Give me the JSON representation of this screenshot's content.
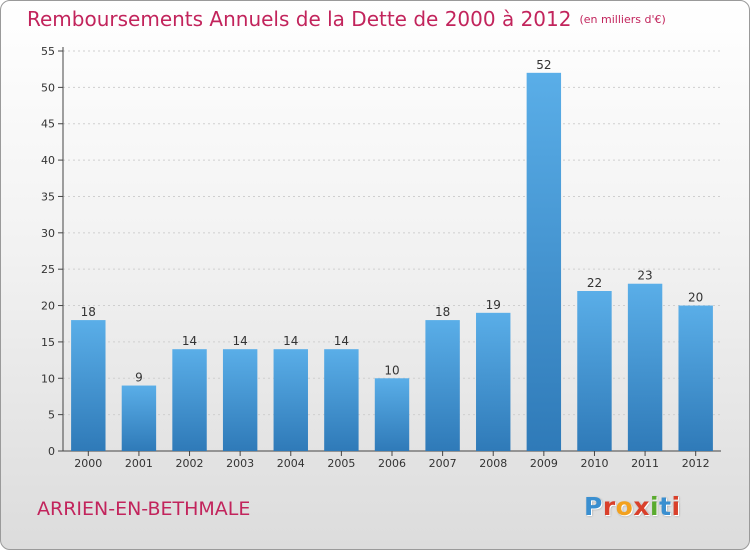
{
  "title": "Remboursements Annuels de la Dette de 2000 à 2012",
  "subtitle": "(en milliers d'€)",
  "commune": "ARRIEN-EN-BETHMALE",
  "logo": {
    "letters": [
      "P",
      "r",
      "o",
      "x",
      "i",
      "t",
      "i"
    ],
    "colors": [
      "#3a8fd0",
      "#d9402b",
      "#f2a11f",
      "#d9402b",
      "#5aab2e",
      "#3a8fd0",
      "#d9402b"
    ]
  },
  "colors": {
    "bar_top": "#5aaee8",
    "bar_bottom": "#2f7ab8",
    "title": "#c2245c",
    "axis": "#444444",
    "grid": "#cfcfcf"
  },
  "chart_data": {
    "type": "bar",
    "categories": [
      "2000",
      "2001",
      "2002",
      "2003",
      "2004",
      "2005",
      "2006",
      "2007",
      "2008",
      "2009",
      "2010",
      "2011",
      "2012"
    ],
    "values": [
      18,
      9,
      14,
      14,
      14,
      14,
      10,
      18,
      19,
      52,
      22,
      23,
      20
    ],
    "title": "Remboursements Annuels de la Dette de 2000 à 2012",
    "ylabel": "",
    "xlabel": "",
    "ylim": [
      0,
      55
    ],
    "yticks": [
      0,
      5,
      10,
      15,
      20,
      25,
      30,
      35,
      40,
      45,
      50,
      55
    ],
    "grid": true
  }
}
